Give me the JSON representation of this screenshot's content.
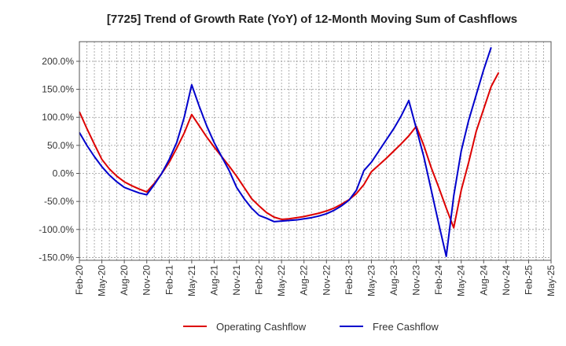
{
  "chart_data": {
    "type": "line",
    "title": "[7725]  Trend of Growth Rate (YoY) of 12-Month Moving Sum of Cashflows",
    "xlabel": "",
    "ylabel": "",
    "ylim": [
      -155,
      235
    ],
    "y_ticks": [
      200,
      150,
      100,
      50,
      0,
      -50,
      -100,
      -150
    ],
    "y_tick_labels": [
      "200.0%",
      "150.0%",
      "100.0%",
      "50.0%",
      "0.0%",
      "-50.0%",
      "-100.0%",
      "-150.0%"
    ],
    "x_tick_labels": [
      "Feb-20",
      "May-20",
      "Aug-20",
      "Nov-20",
      "Feb-21",
      "May-21",
      "Aug-21",
      "Nov-21",
      "Feb-22",
      "May-22",
      "Aug-22",
      "Nov-22",
      "Feb-23",
      "May-23",
      "Aug-23",
      "Nov-23",
      "Feb-24",
      "May-24",
      "Aug-24",
      "Nov-24",
      "Feb-25",
      "May-25"
    ],
    "x_month_count": 64,
    "grid": true,
    "legend_position": "bottom",
    "series": [
      {
        "name": "Operating Cashflow",
        "color": "#dd0000",
        "points": [
          [
            0,
            110
          ],
          [
            1,
            80
          ],
          [
            2,
            52
          ],
          [
            3,
            25
          ],
          [
            4,
            8
          ],
          [
            5,
            -5
          ],
          [
            6,
            -15
          ],
          [
            7,
            -22
          ],
          [
            8,
            -28
          ],
          [
            9,
            -33
          ],
          [
            10,
            -18
          ],
          [
            11,
            0
          ],
          [
            12,
            20
          ],
          [
            13,
            45
          ],
          [
            14,
            72
          ],
          [
            15,
            105
          ],
          [
            16,
            85
          ],
          [
            17,
            65
          ],
          [
            18,
            47
          ],
          [
            19,
            30
          ],
          [
            20,
            13
          ],
          [
            21,
            -5
          ],
          [
            22,
            -25
          ],
          [
            23,
            -45
          ],
          [
            24,
            -58
          ],
          [
            25,
            -70
          ],
          [
            26,
            -78
          ],
          [
            27,
            -82
          ],
          [
            28,
            -81
          ],
          [
            29,
            -79
          ],
          [
            30,
            -77
          ],
          [
            31,
            -74
          ],
          [
            32,
            -71
          ],
          [
            33,
            -67
          ],
          [
            34,
            -62
          ],
          [
            35,
            -55
          ],
          [
            36,
            -47
          ],
          [
            37,
            -36
          ],
          [
            38,
            -20
          ],
          [
            39,
            3
          ],
          [
            40,
            15
          ],
          [
            41,
            27
          ],
          [
            42,
            40
          ],
          [
            43,
            53
          ],
          [
            44,
            67
          ],
          [
            45,
            84
          ],
          [
            46,
            50
          ],
          [
            47,
            10
          ],
          [
            48,
            -25
          ],
          [
            49,
            -62
          ],
          [
            50,
            -97
          ],
          [
            51,
            -30
          ],
          [
            52,
            20
          ],
          [
            53,
            75
          ],
          [
            54,
            115
          ],
          [
            55,
            155
          ],
          [
            56,
            180
          ]
        ]
      },
      {
        "name": "Free Cashflow",
        "color": "#0000cc",
        "points": [
          [
            0,
            73
          ],
          [
            1,
            50
          ],
          [
            2,
            30
          ],
          [
            3,
            12
          ],
          [
            4,
            -3
          ],
          [
            5,
            -15
          ],
          [
            6,
            -25
          ],
          [
            7,
            -30
          ],
          [
            8,
            -35
          ],
          [
            9,
            -38
          ],
          [
            10,
            -20
          ],
          [
            11,
            0
          ],
          [
            12,
            25
          ],
          [
            13,
            55
          ],
          [
            14,
            100
          ],
          [
            15,
            158
          ],
          [
            16,
            120
          ],
          [
            17,
            85
          ],
          [
            18,
            55
          ],
          [
            19,
            30
          ],
          [
            20,
            5
          ],
          [
            21,
            -25
          ],
          [
            22,
            -45
          ],
          [
            23,
            -62
          ],
          [
            24,
            -75
          ],
          [
            25,
            -80
          ],
          [
            26,
            -86
          ],
          [
            27,
            -85
          ],
          [
            28,
            -84
          ],
          [
            29,
            -83
          ],
          [
            30,
            -81
          ],
          [
            31,
            -79
          ],
          [
            32,
            -76
          ],
          [
            33,
            -72
          ],
          [
            34,
            -66
          ],
          [
            35,
            -58
          ],
          [
            36,
            -48
          ],
          [
            37,
            -30
          ],
          [
            38,
            5
          ],
          [
            39,
            20
          ],
          [
            40,
            40
          ],
          [
            41,
            60
          ],
          [
            42,
            80
          ],
          [
            43,
            103
          ],
          [
            44,
            130
          ],
          [
            45,
            80
          ],
          [
            46,
            30
          ],
          [
            47,
            -30
          ],
          [
            48,
            -90
          ],
          [
            49,
            -148
          ],
          [
            50,
            -40
          ],
          [
            51,
            40
          ],
          [
            52,
            95
          ],
          [
            53,
            140
          ],
          [
            54,
            185
          ],
          [
            55,
            225
          ]
        ]
      }
    ]
  }
}
